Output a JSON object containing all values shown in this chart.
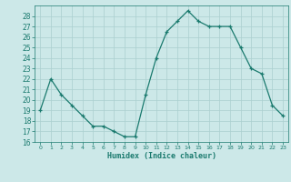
{
  "x": [
    0,
    1,
    2,
    3,
    4,
    5,
    6,
    7,
    8,
    9,
    10,
    11,
    12,
    13,
    14,
    15,
    16,
    17,
    18,
    19,
    20,
    21,
    22,
    23
  ],
  "y": [
    19,
    22,
    20.5,
    19.5,
    18.5,
    17.5,
    17.5,
    17,
    16.5,
    16.5,
    20.5,
    24,
    26.5,
    27.5,
    28.5,
    27.5,
    27,
    27,
    27,
    25,
    23,
    22.5,
    19.5,
    18.5
  ],
  "xlabel": "Humidex (Indice chaleur)",
  "ylim": [
    16,
    29
  ],
  "xlim": [
    -0.5,
    23.5
  ],
  "yticks": [
    16,
    17,
    18,
    19,
    20,
    21,
    22,
    23,
    24,
    25,
    26,
    27,
    28
  ],
  "xticks": [
    0,
    1,
    2,
    3,
    4,
    5,
    6,
    7,
    8,
    9,
    10,
    11,
    12,
    13,
    14,
    15,
    16,
    17,
    18,
    19,
    20,
    21,
    22,
    23
  ],
  "line_color": "#1a7a6e",
  "bg_color": "#cce8e8",
  "grid_color": "#aacfcf",
  "axes_color": "#1a7a6e",
  "xlabel_color": "#1a7a6e"
}
